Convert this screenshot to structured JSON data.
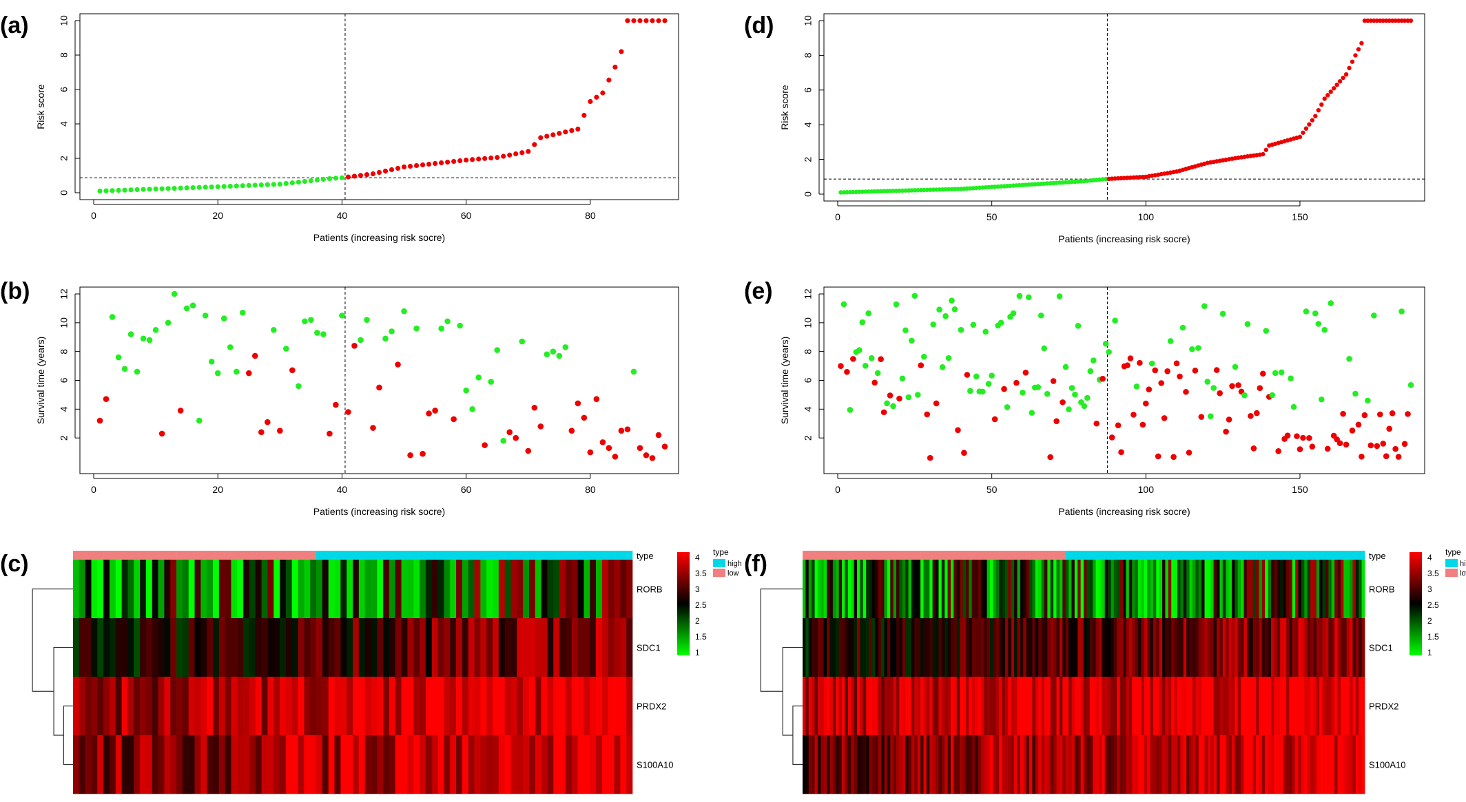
{
  "chart_data": [
    {
      "panel": "(a)",
      "type": "scatter",
      "xlabel": "Patients (increasing risk socre)",
      "ylabel": "Risk score",
      "xlim": [
        0,
        92
      ],
      "ylim": [
        0,
        10
      ],
      "xticks": [
        0,
        20,
        40,
        60,
        80
      ],
      "yticks": [
        0,
        2,
        4,
        6,
        8,
        10
      ],
      "cutoff_x": 40,
      "cutoff_y": 0.87,
      "n": 92,
      "risk_score": {
        "anchors_x": [
          1,
          10,
          20,
          30,
          38,
          40,
          45,
          50,
          55,
          60,
          65,
          70,
          72,
          78,
          80,
          82,
          84,
          85,
          86,
          92
        ],
        "anchors_y": [
          0.1,
          0.22,
          0.35,
          0.5,
          0.82,
          0.87,
          1.1,
          1.5,
          1.7,
          1.9,
          2.05,
          2.4,
          3.2,
          3.7,
          5.3,
          5.8,
          7.3,
          8.2,
          10,
          10
        ]
      },
      "colors": {
        "low": "#22ee22",
        "high": "#ee0000"
      }
    },
    {
      "panel": "(b)",
      "type": "scatter",
      "xlabel": "Patients (increasing risk socre)",
      "ylabel": "Survival time (years)",
      "xlim": [
        0,
        92
      ],
      "ylim": [
        0,
        12
      ],
      "xticks": [
        0,
        20,
        40,
        60,
        80
      ],
      "yticks": [
        2,
        4,
        6,
        8,
        10,
        12
      ],
      "cutoff_x": 40,
      "n": 92,
      "points": [
        [
          1,
          3.2,
          1
        ],
        [
          2,
          4.7,
          1
        ],
        [
          3,
          10.4,
          0
        ],
        [
          4,
          7.6,
          0
        ],
        [
          5,
          6.8,
          0
        ],
        [
          6,
          9.2,
          0
        ],
        [
          7,
          6.6,
          0
        ],
        [
          8,
          8.9,
          0
        ],
        [
          9,
          8.8,
          0
        ],
        [
          10,
          9.5,
          0
        ],
        [
          11,
          2.3,
          1
        ],
        [
          12,
          10,
          0
        ],
        [
          13,
          12,
          0
        ],
        [
          14,
          3.9,
          1
        ],
        [
          15,
          11,
          0
        ],
        [
          16,
          11.2,
          0
        ],
        [
          17,
          3.2,
          0
        ],
        [
          18,
          10.5,
          0
        ],
        [
          19,
          7.3,
          0
        ],
        [
          20,
          6.5,
          0
        ],
        [
          21,
          10.3,
          0
        ],
        [
          22,
          8.3,
          0
        ],
        [
          23,
          6.6,
          0
        ],
        [
          24,
          10.7,
          0
        ],
        [
          25,
          6.5,
          1
        ],
        [
          26,
          7.7,
          1
        ],
        [
          27,
          2.4,
          1
        ],
        [
          28,
          3.1,
          1
        ],
        [
          29,
          9.5,
          0
        ],
        [
          30,
          2.5,
          1
        ],
        [
          31,
          8.2,
          0
        ],
        [
          32,
          6.7,
          1
        ],
        [
          33,
          5.6,
          0
        ],
        [
          34,
          10.1,
          0
        ],
        [
          35,
          10.2,
          0
        ],
        [
          36,
          9.3,
          0
        ],
        [
          37,
          9.2,
          0
        ],
        [
          38,
          2.3,
          1
        ],
        [
          39,
          4.3,
          1
        ],
        [
          40,
          10.5,
          0
        ],
        [
          41,
          3.8,
          1
        ],
        [
          42,
          8.4,
          1
        ],
        [
          43,
          8.8,
          0
        ],
        [
          44,
          10.2,
          0
        ],
        [
          45,
          2.7,
          1
        ],
        [
          46,
          5.5,
          1
        ],
        [
          47,
          8.9,
          0
        ],
        [
          48,
          9.4,
          0
        ],
        [
          49,
          7.1,
          1
        ],
        [
          50,
          10.8,
          0
        ],
        [
          51,
          0.8,
          1
        ],
        [
          52,
          9.6,
          0
        ],
        [
          53,
          0.9,
          1
        ],
        [
          54,
          3.7,
          1
        ],
        [
          55,
          3.9,
          1
        ],
        [
          56,
          9.6,
          0
        ],
        [
          57,
          10.1,
          0
        ],
        [
          58,
          3.3,
          1
        ],
        [
          59,
          9.8,
          0
        ],
        [
          60,
          5.3,
          0
        ],
        [
          61,
          4,
          0
        ],
        [
          62,
          6.2,
          0
        ],
        [
          63,
          1.5,
          1
        ],
        [
          64,
          5.9,
          0
        ],
        [
          65,
          8.1,
          0
        ],
        [
          66,
          1.8,
          0
        ],
        [
          67,
          2.4,
          1
        ],
        [
          68,
          2,
          1
        ],
        [
          69,
          8.7,
          0
        ],
        [
          70,
          1.1,
          1
        ],
        [
          71,
          4.1,
          1
        ],
        [
          72,
          2.8,
          1
        ],
        [
          73,
          7.8,
          0
        ],
        [
          74,
          8,
          0
        ],
        [
          75,
          7.7,
          0
        ],
        [
          76,
          8.3,
          0
        ],
        [
          77,
          2.5,
          1
        ],
        [
          78,
          4.4,
          1
        ],
        [
          79,
          3.4,
          1
        ],
        [
          80,
          1,
          1
        ],
        [
          81,
          4.7,
          1
        ],
        [
          82,
          1.7,
          1
        ],
        [
          83,
          1.3,
          1
        ],
        [
          84,
          0.7,
          1
        ],
        [
          85,
          2.5,
          1
        ],
        [
          86,
          2.6,
          1
        ],
        [
          87,
          6.6,
          0
        ],
        [
          88,
          1.3,
          1
        ],
        [
          89,
          0.8,
          1
        ],
        [
          90,
          0.6,
          1
        ],
        [
          91,
          2.2,
          1
        ],
        [
          92,
          1.4,
          1
        ]
      ],
      "colors": {
        "alive": "#22ee22",
        "dead": "#ee0000"
      }
    },
    {
      "panel": "(c)",
      "type": "heatmap",
      "rows": [
        "RORB",
        "SDC1",
        "PRDX2",
        "S100A10"
      ],
      "n_columns": 92,
      "low_columns": 40,
      "annotation_title": "type",
      "annotation_legend": [
        "high",
        "low"
      ],
      "colorbar_ticks": [
        "4",
        "3.5",
        "3",
        "2.5",
        "2",
        "1.5",
        "1"
      ],
      "row_means": [
        2.2,
        2.9,
        3.7,
        3.6
      ],
      "row_trend": [
        0.2,
        0.5,
        0.3,
        0.4
      ]
    },
    {
      "panel": "(d)",
      "type": "scatter",
      "xlabel": "Patients (increasing risk socre)",
      "ylabel": "Risk score",
      "xlim": [
        0,
        186
      ],
      "ylim": [
        0,
        10
      ],
      "xticks": [
        0,
        50,
        100,
        150
      ],
      "yticks": [
        0,
        2,
        4,
        6,
        8,
        10
      ],
      "cutoff_x": 87,
      "cutoff_y": 0.87,
      "n": 186,
      "risk_score": {
        "anchors_x": [
          1,
          40,
          80,
          87,
          100,
          110,
          120,
          130,
          138,
          140,
          150,
          155,
          158,
          162,
          165,
          168,
          170,
          171,
          186
        ],
        "anchors_y": [
          0.1,
          0.3,
          0.75,
          0.87,
          1.0,
          1.3,
          1.8,
          2.1,
          2.3,
          2.8,
          3.3,
          4.5,
          5.5,
          6.3,
          6.9,
          8.0,
          8.7,
          10,
          10
        ]
      },
      "colors": {
        "low": "#22ee22",
        "high": "#ee0000"
      }
    },
    {
      "panel": "(e)",
      "type": "scatter",
      "xlabel": "Patients (increasing risk socre)",
      "ylabel": "Survival time (years)",
      "xlim": [
        0,
        186
      ],
      "ylim": [
        0,
        12
      ],
      "xticks": [
        0,
        50,
        100,
        150
      ],
      "yticks": [
        2,
        4,
        6,
        8,
        10,
        12
      ],
      "cutoff_x": 87,
      "n": 186,
      "surv_seed": 7,
      "colors": {
        "alive": "#22ee22",
        "dead": "#ee0000"
      }
    },
    {
      "panel": "(f)",
      "type": "heatmap",
      "rows": [
        "RORB",
        "SDC1",
        "PRDX2",
        "S100A10"
      ],
      "n_columns": 186,
      "low_columns": 87,
      "annotation_title": "type",
      "annotation_legend": [
        "higt",
        "low"
      ],
      "colorbar_ticks": [
        "4",
        "3.5",
        "3",
        "2.5",
        "2",
        "1.5",
        "1"
      ],
      "row_means": [
        2.1,
        3.0,
        3.8,
        3.5
      ],
      "row_trend": [
        0.2,
        0.4,
        0.3,
        0.4
      ]
    }
  ]
}
